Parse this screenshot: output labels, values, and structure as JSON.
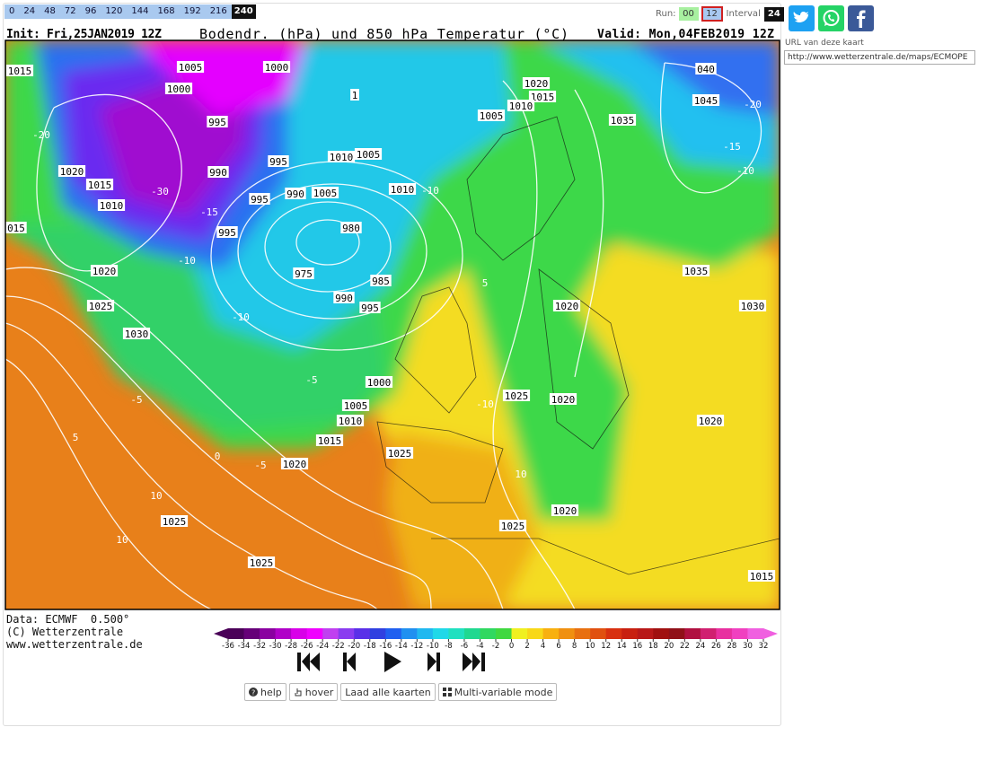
{
  "timesteps": [
    "0",
    "24",
    "48",
    "72",
    "96",
    "120",
    "144",
    "168",
    "192",
    "216",
    "240"
  ],
  "run": {
    "label": "Run:",
    "options": [
      "00",
      "12"
    ],
    "interval_label": "Interval",
    "interval": "24"
  },
  "header": {
    "init": "Init: Fri,25JAN2019 12Z",
    "title": "Bodendr. (hPa) und 850 hPa Temperatur (°C)",
    "valid": "Valid: Mon,04FEB2019 12Z"
  },
  "map": {
    "isobar_labels": [
      "1015",
      "1005",
      "1000",
      "1000",
      "995",
      "990",
      "1020",
      "1015",
      "1010",
      "995",
      "995",
      "995",
      "990",
      "1005",
      "1010",
      "1005",
      "1010",
      "980",
      "975",
      "985",
      "990",
      "995",
      "1020",
      "1025",
      "1030",
      "015",
      "1000",
      "1005",
      "1010",
      "1015",
      "1020",
      "1025",
      "1025",
      "1025",
      "1025",
      "1020",
      "1025",
      "1020",
      "1020",
      "1020",
      "1035",
      "1030",
      "1035",
      "040",
      "1045",
      "1020",
      "1015",
      "1010",
      "1005",
      "1015",
      "1"
    ],
    "temperature_labels": [
      "-20",
      "-30",
      "-15",
      "-10",
      "-10",
      "-10",
      "-5",
      "-5",
      "5",
      "0",
      "10",
      "10",
      "-5",
      "-20",
      "-15",
      "-10",
      "5",
      "-10",
      "10"
    ]
  },
  "footer": {
    "lines": [
      "Data: ECMWF  0.500°",
      "(C) Wetterzentrale",
      "www.wetterzentrale.de"
    ]
  },
  "colorbar": {
    "ticks": [
      -36,
      -34,
      -32,
      -30,
      -28,
      -26,
      -24,
      -22,
      -20,
      -18,
      -16,
      -14,
      -12,
      -10,
      -8,
      -6,
      -4,
      -2,
      0,
      2,
      4,
      6,
      8,
      10,
      12,
      14,
      16,
      18,
      20,
      22,
      24,
      26,
      28,
      30,
      32
    ],
    "colors": [
      "#4a0058",
      "#660078",
      "#8a00a0",
      "#b000c8",
      "#d800e8",
      "#f000ff",
      "#c040f0",
      "#8a3cf0",
      "#5a30e8",
      "#3040e0",
      "#2060f0",
      "#2090f0",
      "#20b8f0",
      "#20d8e8",
      "#20e0c0",
      "#20d890",
      "#30d860",
      "#40d840",
      "#f0f020",
      "#f8d818",
      "#f8b010",
      "#f09010",
      "#e87010",
      "#e05010",
      "#d83010",
      "#c82010",
      "#b81818",
      "#a01010",
      "#901018",
      "#b01040",
      "#d02070",
      "#e830a0",
      "#f040c0",
      "#f060e0"
    ]
  },
  "buttons": [
    "help",
    "hover",
    "Laad alle kaarten",
    "Multi-variable mode"
  ],
  "share": {
    "url_label": "URL van deze kaart",
    "url": "http://www.wetterzentrale.de/maps/ECMOPE"
  }
}
